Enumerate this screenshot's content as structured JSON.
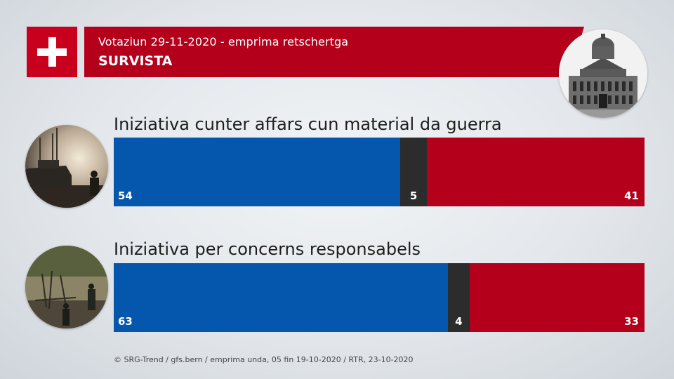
{
  "header": {
    "subtitle": "Votaziun 29-11-2020 - emprima retschertga",
    "title": "SURVISTA"
  },
  "colors": {
    "yes": "#0556ad",
    "undecided": "#2c2c2c",
    "no": "#b5001b",
    "header": "#b5001b"
  },
  "icons": {
    "flag": "swiss-flag-icon",
    "parliament": "federal-palace-photo",
    "photo1": "soldiers-tank-photo",
    "photo2": "mining-site-photo"
  },
  "chart_data": {
    "type": "bar",
    "stacked": true,
    "orientation": "horizontal",
    "categories": [
      "Iniziativa cunter affars cun material da guerra",
      "Iniziativa per concerns responsabels"
    ],
    "series": [
      {
        "values": [
          54,
          63
        ]
      },
      {
        "values": [
          5,
          4
        ]
      },
      {
        "values": [
          41,
          33
        ]
      }
    ],
    "xlim": [
      0,
      100
    ]
  },
  "footer": {
    "source": "© SRG-Trend / gfs.bern  /  emprima unda, 05 fin 19-10-2020  / RTR, 23-10-2020"
  }
}
